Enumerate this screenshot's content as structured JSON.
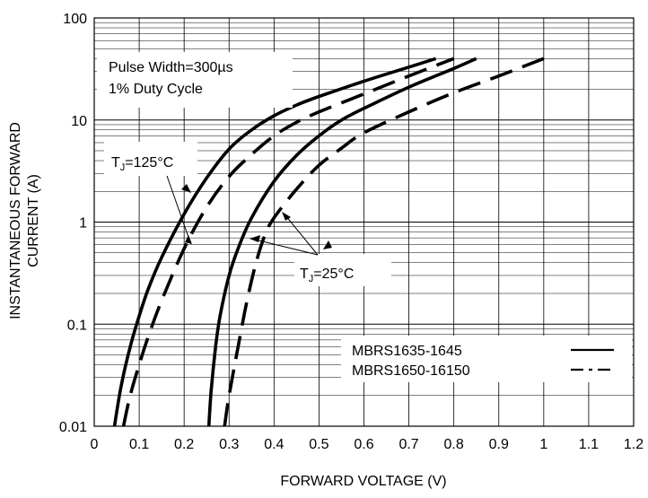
{
  "chart_data": {
    "type": "line",
    "title": "",
    "xlabel": "FORWARD VOLTAGE (V)",
    "ylabel_line1": "INSTANTANEOUS FORWARD",
    "ylabel_line2": "CURRENT (A)",
    "xlim": [
      0,
      1.2
    ],
    "ylim": [
      0.01,
      100
    ],
    "y_scale": "log",
    "grid": true,
    "x_ticks": [
      0,
      0.1,
      0.2,
      0.3,
      0.4,
      0.5,
      0.6,
      0.7,
      0.8,
      0.9,
      1,
      1.1,
      1.2
    ],
    "x_tick_labels": [
      "0",
      "0.1",
      "0.2",
      "0.3",
      "0.4",
      "0.5",
      "0.6",
      "0.7",
      "0.8",
      "0.9",
      "1",
      "1.1",
      "1.2"
    ],
    "y_ticks": [
      0.01,
      0.1,
      1,
      10,
      100
    ],
    "y_tick_labels": [
      "0.01",
      "0.1",
      "1",
      "10",
      "100"
    ],
    "annotations": {
      "pulse_line1": "Pulse Width=300µs",
      "pulse_line2": "1% Duty Cycle",
      "tj_high": {
        "prefix": "T",
        "sub": "J",
        "suffix": "=125°C"
      },
      "tj_low": {
        "prefix": "T",
        "sub": "J",
        "suffix": "=25°C"
      }
    },
    "legend": {
      "placement": "bottom-right",
      "entries": [
        {
          "label": "MBRS1635-1645",
          "style": "solid"
        },
        {
          "label": "MBRS1650-16150",
          "style": "dashed"
        }
      ]
    },
    "series": [
      {
        "name": "MBRS1635-1645",
        "condition": "125°C",
        "style": "solid",
        "x": [
          0.045,
          0.06,
          0.08,
          0.1,
          0.12,
          0.15,
          0.2,
          0.25,
          0.3,
          0.35,
          0.4,
          0.45,
          0.5,
          0.6,
          0.7,
          0.76
        ],
        "y": [
          0.01,
          0.025,
          0.06,
          0.12,
          0.22,
          0.45,
          1.2,
          2.7,
          5.2,
          8.0,
          11,
          14,
          17,
          24,
          33,
          40
        ]
      },
      {
        "name": "MBRS1650-16150",
        "condition": "125°C",
        "style": "dashed",
        "x": [
          0.065,
          0.08,
          0.1,
          0.12,
          0.15,
          0.2,
          0.25,
          0.3,
          0.35,
          0.4,
          0.45,
          0.5,
          0.6,
          0.7,
          0.8
        ],
        "y": [
          0.01,
          0.02,
          0.04,
          0.075,
          0.17,
          0.55,
          1.4,
          2.8,
          4.6,
          7.0,
          9.5,
          12,
          18,
          27,
          40
        ]
      },
      {
        "name": "MBRS1635-1645",
        "condition": "25°C",
        "style": "solid",
        "x": [
          0.255,
          0.26,
          0.27,
          0.28,
          0.3,
          0.32,
          0.35,
          0.4,
          0.45,
          0.5,
          0.55,
          0.6,
          0.7,
          0.8,
          0.85
        ],
        "y": [
          0.01,
          0.022,
          0.06,
          0.12,
          0.3,
          0.55,
          1.1,
          2.5,
          4.5,
          7.0,
          10,
          13,
          21,
          32,
          40
        ]
      },
      {
        "name": "MBRS1650-16150",
        "condition": "25°C",
        "style": "dashed",
        "x": [
          0.29,
          0.3,
          0.32,
          0.34,
          0.36,
          0.38,
          0.4,
          0.45,
          0.5,
          0.55,
          0.6,
          0.7,
          0.8,
          0.9,
          1.0
        ],
        "y": [
          0.01,
          0.02,
          0.06,
          0.17,
          0.4,
          0.75,
          1.1,
          2.1,
          3.6,
          5.3,
          7.5,
          12,
          18.5,
          27,
          40
        ]
      }
    ]
  }
}
